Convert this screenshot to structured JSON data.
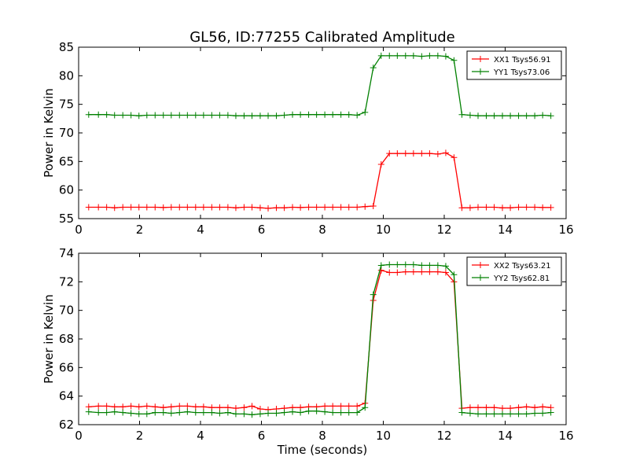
{
  "title": "GL56, ID:77255 Calibrated Amplitude",
  "colors": {
    "xx": "#ff0000",
    "yy": "#008000"
  },
  "chart_data": [
    {
      "type": "line",
      "ylabel": "Power in Kelvin",
      "xlabel": "",
      "xlim": [
        0,
        16
      ],
      "ylim": [
        55,
        85
      ],
      "xticks": [
        0,
        2,
        4,
        6,
        8,
        10,
        12,
        14,
        16
      ],
      "yticks": [
        55,
        60,
        65,
        70,
        75,
        80,
        85
      ],
      "legend_position": "top-right",
      "x": [
        0.33,
        0.65,
        0.92,
        1.18,
        1.45,
        1.72,
        1.98,
        2.24,
        2.51,
        2.78,
        3.04,
        3.31,
        3.57,
        3.84,
        4.1,
        4.37,
        4.63,
        4.9,
        5.16,
        5.43,
        5.69,
        5.96,
        6.22,
        6.49,
        6.75,
        7.02,
        7.28,
        7.55,
        7.81,
        8.08,
        8.34,
        8.61,
        8.87,
        9.14,
        9.4,
        9.67,
        9.93,
        10.2,
        10.46,
        10.73,
        10.99,
        11.26,
        11.52,
        11.79,
        12.05,
        12.32,
        12.58,
        12.85,
        13.11,
        13.38,
        13.64,
        13.91,
        14.17,
        14.44,
        14.7,
        14.97,
        15.23,
        15.5
      ],
      "series": [
        {
          "name": "XX1 Tsys56.91",
          "color": "#ff0000",
          "values": [
            57.0,
            57.0,
            57.0,
            56.9,
            57.0,
            57.0,
            57.0,
            57.0,
            57.0,
            56.95,
            57.0,
            57.0,
            57.0,
            57.0,
            57.0,
            57.0,
            57.0,
            57.0,
            56.9,
            57.0,
            57.0,
            56.9,
            56.8,
            56.9,
            56.9,
            57.0,
            56.95,
            57.0,
            57.0,
            57.0,
            57.0,
            57.0,
            57.0,
            57.0,
            57.1,
            57.2,
            64.5,
            66.4,
            66.4,
            66.4,
            66.4,
            66.4,
            66.4,
            66.3,
            66.5,
            65.7,
            56.9,
            56.9,
            57.0,
            57.0,
            57.0,
            56.9,
            56.9,
            57.0,
            57.0,
            57.0,
            56.95,
            56.95
          ]
        },
        {
          "name": "YY1 Tsys73.06",
          "color": "#008000",
          "values": [
            73.2,
            73.2,
            73.2,
            73.1,
            73.1,
            73.1,
            73.0,
            73.1,
            73.1,
            73.1,
            73.1,
            73.1,
            73.1,
            73.1,
            73.1,
            73.1,
            73.1,
            73.1,
            73.0,
            73.0,
            73.0,
            73.0,
            73.0,
            73.0,
            73.1,
            73.2,
            73.2,
            73.2,
            73.2,
            73.2,
            73.2,
            73.2,
            73.2,
            73.1,
            73.6,
            81.4,
            83.5,
            83.5,
            83.5,
            83.5,
            83.5,
            83.4,
            83.5,
            83.5,
            83.4,
            82.7,
            73.2,
            73.1,
            73.0,
            73.0,
            73.0,
            73.0,
            73.0,
            73.0,
            73.0,
            73.0,
            73.1,
            73.0
          ]
        }
      ]
    },
    {
      "type": "line",
      "ylabel": "Power in Kelvin",
      "xlabel": "Time (seconds)",
      "xlim": [
        0,
        16
      ],
      "ylim": [
        62,
        74
      ],
      "xticks": [
        0,
        2,
        4,
        6,
        8,
        10,
        12,
        14,
        16
      ],
      "yticks": [
        62,
        64,
        66,
        68,
        70,
        72,
        74
      ],
      "legend_position": "top-right",
      "x": [
        0.33,
        0.65,
        0.92,
        1.18,
        1.45,
        1.72,
        1.98,
        2.24,
        2.51,
        2.78,
        3.04,
        3.31,
        3.57,
        3.84,
        4.1,
        4.37,
        4.63,
        4.9,
        5.16,
        5.43,
        5.69,
        5.96,
        6.22,
        6.49,
        6.75,
        7.02,
        7.28,
        7.55,
        7.81,
        8.08,
        8.34,
        8.61,
        8.87,
        9.14,
        9.4,
        9.67,
        9.93,
        10.2,
        10.46,
        10.73,
        10.99,
        11.26,
        11.52,
        11.79,
        12.05,
        12.32,
        12.58,
        12.85,
        13.11,
        13.38,
        13.64,
        13.91,
        14.17,
        14.44,
        14.7,
        14.97,
        15.23,
        15.5
      ],
      "series": [
        {
          "name": "XX2 Tsys63.21",
          "color": "#ff0000",
          "values": [
            63.25,
            63.3,
            63.3,
            63.25,
            63.25,
            63.3,
            63.25,
            63.3,
            63.25,
            63.2,
            63.25,
            63.3,
            63.3,
            63.25,
            63.25,
            63.2,
            63.2,
            63.2,
            63.15,
            63.2,
            63.3,
            63.1,
            63.05,
            63.1,
            63.15,
            63.2,
            63.2,
            63.25,
            63.25,
            63.3,
            63.3,
            63.3,
            63.3,
            63.3,
            63.5,
            70.7,
            72.8,
            72.65,
            72.65,
            72.7,
            72.7,
            72.7,
            72.7,
            72.7,
            72.65,
            72.0,
            63.15,
            63.2,
            63.2,
            63.2,
            63.2,
            63.15,
            63.15,
            63.2,
            63.25,
            63.2,
            63.25,
            63.2
          ]
        },
        {
          "name": "YY2 Tsys62.81",
          "color": "#008000",
          "values": [
            62.9,
            62.85,
            62.85,
            62.9,
            62.85,
            62.8,
            62.75,
            62.75,
            62.85,
            62.85,
            62.8,
            62.85,
            62.9,
            62.85,
            62.85,
            62.85,
            62.8,
            62.85,
            62.75,
            62.75,
            62.7,
            62.75,
            62.8,
            62.8,
            62.85,
            62.9,
            62.85,
            62.95,
            62.95,
            62.9,
            62.85,
            62.85,
            62.85,
            62.85,
            63.2,
            71.1,
            73.15,
            73.2,
            73.2,
            73.2,
            73.2,
            73.15,
            73.15,
            73.15,
            73.1,
            72.5,
            62.85,
            62.8,
            62.75,
            62.75,
            62.75,
            62.75,
            62.75,
            62.75,
            62.75,
            62.8,
            62.8,
            62.85
          ]
        }
      ]
    }
  ]
}
